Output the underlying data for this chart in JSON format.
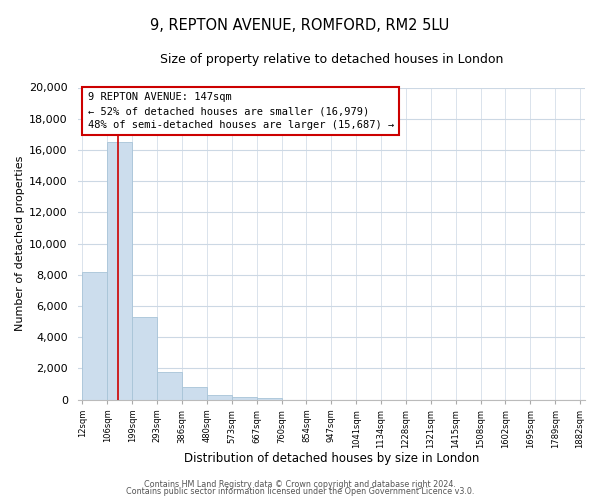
{
  "title": "9, REPTON AVENUE, ROMFORD, RM2 5LU",
  "subtitle": "Size of property relative to detached houses in London",
  "xlabel": "Distribution of detached houses by size in London",
  "ylabel": "Number of detached properties",
  "bar_values": [
    8200,
    16500,
    5300,
    1750,
    800,
    300,
    200,
    100,
    0,
    0,
    0,
    0,
    0,
    0,
    0,
    0,
    0,
    0,
    0,
    0
  ],
  "categories": [
    "12sqm",
    "106sqm",
    "199sqm",
    "293sqm",
    "386sqm",
    "480sqm",
    "573sqm",
    "667sqm",
    "760sqm",
    "854sqm",
    "947sqm",
    "1041sqm",
    "1134sqm",
    "1228sqm",
    "1321sqm",
    "1415sqm",
    "1508sqm",
    "1602sqm",
    "1695sqm",
    "1789sqm",
    "1882sqm"
  ],
  "bar_color": "#ccdded",
  "bar_edge_color": "#a8c4d8",
  "marker_color": "#cc0000",
  "annotation_title": "9 REPTON AVENUE: 147sqm",
  "annotation_line1": "← 52% of detached houses are smaller (16,979)",
  "annotation_line2": "48% of semi-detached houses are larger (15,687) →",
  "annotation_box_color": "#ffffff",
  "annotation_box_edge": "#cc0000",
  "ylim": [
    0,
    20000
  ],
  "yticks": [
    0,
    2000,
    4000,
    6000,
    8000,
    10000,
    12000,
    14000,
    16000,
    18000,
    20000
  ],
  "footer1": "Contains HM Land Registry data © Crown copyright and database right 2024.",
  "footer2": "Contains public sector information licensed under the Open Government Licence v3.0.",
  "bg_color": "#ffffff",
  "grid_color": "#ccd8e4"
}
